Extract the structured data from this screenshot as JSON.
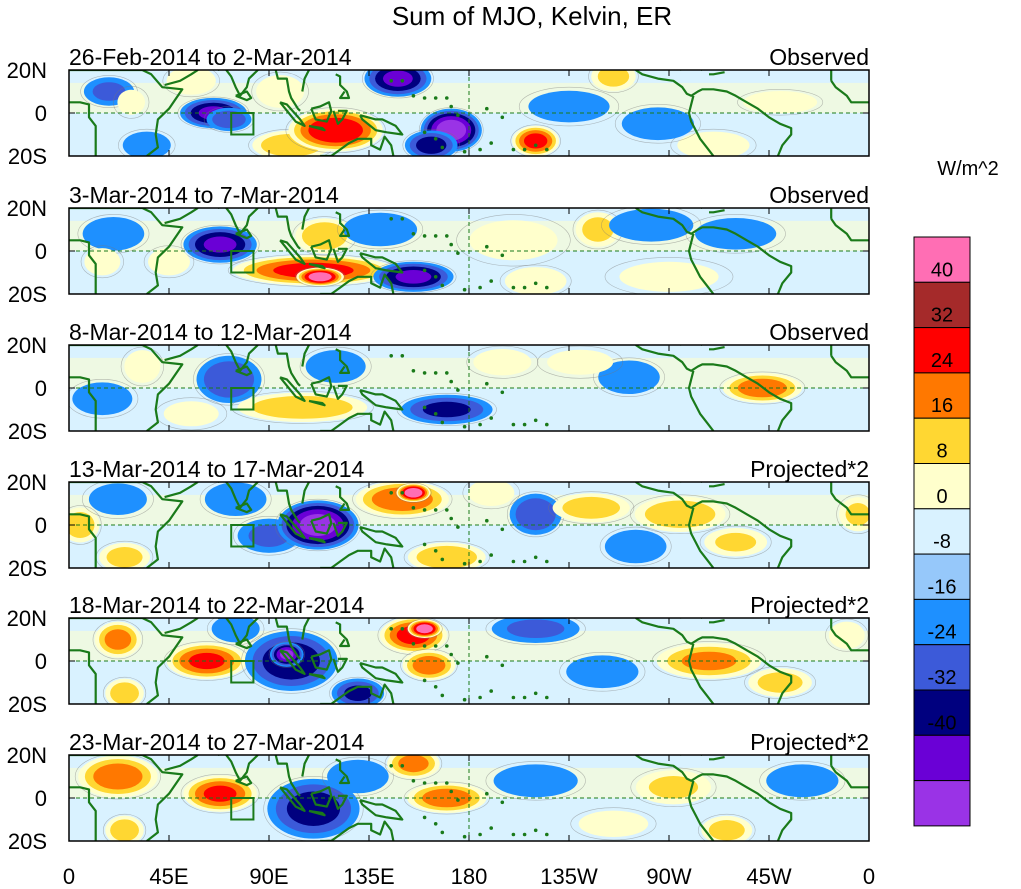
{
  "title": "Sum of MJO, Kelvin, ER",
  "colorbar": {
    "units": "W/m^2",
    "colors": [
      "#9a33e6",
      "#6a00d6",
      "#00007f",
      "#3c5ad9",
      "#1e90ff",
      "#96c8fa",
      "#d9f2ff",
      "#ffffcc",
      "#ffd732",
      "#ff7800",
      "#ff0000",
      "#a52a2a",
      "#ff6eb4"
    ],
    "labels": [
      "-40",
      "-32",
      "-24",
      "-16",
      "-8",
      "0",
      "8",
      "16",
      "24",
      "32",
      "40"
    ]
  },
  "lat_labels": [
    "20N",
    "0",
    "20S"
  ],
  "lon_labels": [
    "0",
    "45E",
    "90E",
    "135E",
    "180",
    "135W",
    "90W",
    "45W",
    "0"
  ],
  "panels": [
    {
      "date_range": "26-Feb-2014 to 2-Mar-2014",
      "kind": "Observed"
    },
    {
      "date_range": "3-Mar-2014 to 7-Mar-2014",
      "kind": "Observed"
    },
    {
      "date_range": "8-Mar-2014 to 12-Mar-2014",
      "kind": "Observed"
    },
    {
      "date_range": "13-Mar-2014 to 17-Mar-2014",
      "kind": "Projected*2"
    },
    {
      "date_range": "18-Mar-2014 to 22-Mar-2014",
      "kind": "Projected*2"
    },
    {
      "date_range": "23-Mar-2014 to 27-Mar-2014",
      "kind": "Projected*2"
    }
  ],
  "anomalies": [
    [
      {
        "lon": 18,
        "lat": 10,
        "v": -14,
        "sx": 8,
        "sy": 5
      },
      {
        "lon": 35,
        "lat": -15,
        "v": -10,
        "sx": 8,
        "sy": 5
      },
      {
        "lon": 28,
        "lat": 5,
        "v": 6,
        "sx": 5,
        "sy": 5
      },
      {
        "lon": 65,
        "lat": 0,
        "v": -30,
        "sx": 10,
        "sy": 5
      },
      {
        "lon": 72,
        "lat": -3,
        "v": -18,
        "sx": 7,
        "sy": 4
      },
      {
        "lon": 55,
        "lat": 15,
        "v": 12,
        "sx": 8,
        "sy": 5
      },
      {
        "lon": 100,
        "lat": -15,
        "v": 20,
        "sx": 12,
        "sy": 5
      },
      {
        "lon": 120,
        "lat": -8,
        "v": 36,
        "sx": 14,
        "sy": 7
      },
      {
        "lon": 148,
        "lat": 16,
        "v": -30,
        "sx": 10,
        "sy": 6
      },
      {
        "lon": 172,
        "lat": -8,
        "v": -42,
        "sx": 9,
        "sy": 7
      },
      {
        "lon": 163,
        "lat": -15,
        "v": -24,
        "sx": 8,
        "sy": 5
      },
      {
        "lon": 210,
        "lat": -13,
        "v": 32,
        "sx": 7,
        "sy": 5
      },
      {
        "lon": 245,
        "lat": 17,
        "v": 16,
        "sx": 7,
        "sy": 5
      },
      {
        "lon": 320,
        "lat": 5,
        "v": 12,
        "sx": 12,
        "sy": 4
      },
      {
        "lon": 290,
        "lat": -15,
        "v": 10,
        "sx": 12,
        "sy": 5
      },
      {
        "lon": 265,
        "lat": -5,
        "v": -10,
        "sx": 12,
        "sy": 6
      },
      {
        "lon": 225,
        "lat": 3,
        "v": -8,
        "sx": 14,
        "sy": 6
      },
      {
        "lon": 95,
        "lat": 10,
        "v": 10,
        "sx": 8,
        "sy": 6
      }
    ],
    [
      {
        "lon": 20,
        "lat": 8,
        "v": -12,
        "sx": 10,
        "sy": 6
      },
      {
        "lon": 15,
        "lat": -5,
        "v": 10,
        "sx": 6,
        "sy": 5
      },
      {
        "lon": 68,
        "lat": 3,
        "v": -30,
        "sx": 11,
        "sy": 6
      },
      {
        "lon": 45,
        "lat": -5,
        "v": 10,
        "sx": 7,
        "sy": 5
      },
      {
        "lon": 110,
        "lat": -9,
        "v": 32,
        "sx": 24,
        "sy": 5
      },
      {
        "lon": 113,
        "lat": -12,
        "v": 42,
        "sx": 7,
        "sy": 3
      },
      {
        "lon": 115,
        "lat": 7,
        "v": 20,
        "sx": 9,
        "sy": 6
      },
      {
        "lon": 140,
        "lat": 10,
        "v": -12,
        "sx": 12,
        "sy": 6
      },
      {
        "lon": 155,
        "lat": -12,
        "v": -30,
        "sx": 12,
        "sy": 5
      },
      {
        "lon": 210,
        "lat": -14,
        "v": 12,
        "sx": 10,
        "sy": 5
      },
      {
        "lon": 238,
        "lat": 10,
        "v": 16,
        "sx": 7,
        "sy": 6
      },
      {
        "lon": 262,
        "lat": 12,
        "v": -10,
        "sx": 14,
        "sy": 6
      },
      {
        "lon": 300,
        "lat": 8,
        "v": -8,
        "sx": 14,
        "sy": 6
      },
      {
        "lon": 200,
        "lat": 5,
        "v": 6,
        "sx": 16,
        "sy": 8
      },
      {
        "lon": 270,
        "lat": -12,
        "v": 6,
        "sx": 18,
        "sy": 6
      }
    ],
    [
      {
        "lon": 15,
        "lat": -5,
        "v": -10,
        "sx": 10,
        "sy": 6
      },
      {
        "lon": 33,
        "lat": 10,
        "v": 10,
        "sx": 6,
        "sy": 6
      },
      {
        "lon": 72,
        "lat": 4,
        "v": -20,
        "sx": 10,
        "sy": 8
      },
      {
        "lon": 105,
        "lat": -9,
        "v": 20,
        "sx": 20,
        "sy": 5
      },
      {
        "lon": 120,
        "lat": 10,
        "v": -10,
        "sx": 10,
        "sy": 6
      },
      {
        "lon": 170,
        "lat": -10,
        "v": -22,
        "sx": 14,
        "sy": 5
      },
      {
        "lon": 195,
        "lat": 12,
        "v": 8,
        "sx": 10,
        "sy": 5
      },
      {
        "lon": 252,
        "lat": 5,
        "v": -12,
        "sx": 10,
        "sy": 6
      },
      {
        "lon": 312,
        "lat": 0,
        "v": 26,
        "sx": 12,
        "sy": 5
      },
      {
        "lon": 230,
        "lat": 12,
        "v": 6,
        "sx": 12,
        "sy": 5
      },
      {
        "lon": 55,
        "lat": -12,
        "v": 6,
        "sx": 10,
        "sy": 5
      }
    ],
    [
      {
        "lon": 5,
        "lat": 0,
        "v": 18,
        "sx": 6,
        "sy": 6
      },
      {
        "lon": 25,
        "lat": -15,
        "v": 16,
        "sx": 8,
        "sy": 5
      },
      {
        "lon": 22,
        "lat": 12,
        "v": -8,
        "sx": 10,
        "sy": 6
      },
      {
        "lon": 75,
        "lat": 12,
        "v": -12,
        "sx": 10,
        "sy": 6
      },
      {
        "lon": 90,
        "lat": -5,
        "v": -14,
        "sx": 10,
        "sy": 6
      },
      {
        "lon": 112,
        "lat": 0,
        "v": -40,
        "sx": 12,
        "sy": 8
      },
      {
        "lon": 150,
        "lat": 12,
        "v": 28,
        "sx": 14,
        "sy": 6
      },
      {
        "lon": 155,
        "lat": 15,
        "v": 44,
        "sx": 5,
        "sy": 3
      },
      {
        "lon": 170,
        "lat": -15,
        "v": 20,
        "sx": 12,
        "sy": 5
      },
      {
        "lon": 210,
        "lat": 5,
        "v": -20,
        "sx": 8,
        "sy": 7
      },
      {
        "lon": 235,
        "lat": 8,
        "v": 18,
        "sx": 12,
        "sy": 5
      },
      {
        "lon": 275,
        "lat": 5,
        "v": 20,
        "sx": 14,
        "sy": 6
      },
      {
        "lon": 255,
        "lat": -10,
        "v": -12,
        "sx": 10,
        "sy": 6
      },
      {
        "lon": 355,
        "lat": 5,
        "v": 14,
        "sx": 6,
        "sy": 6
      },
      {
        "lon": 300,
        "lat": -8,
        "v": 14,
        "sx": 10,
        "sy": 5
      },
      {
        "lon": 190,
        "lat": 15,
        "v": 8,
        "sx": 8,
        "sy": 5
      }
    ],
    [
      {
        "lon": 22,
        "lat": 10,
        "v": 24,
        "sx": 7,
        "sy": 6
      },
      {
        "lon": 25,
        "lat": -15,
        "v": 18,
        "sx": 6,
        "sy": 5
      },
      {
        "lon": 62,
        "lat": 0,
        "v": 30,
        "sx": 12,
        "sy": 6
      },
      {
        "lon": 100,
        "lat": 0,
        "v": -26,
        "sx": 14,
        "sy": 10
      },
      {
        "lon": 98,
        "lat": 3,
        "v": -38,
        "sx": 5,
        "sy": 4
      },
      {
        "lon": 130,
        "lat": -15,
        "v": -22,
        "sx": 8,
        "sy": 5
      },
      {
        "lon": 155,
        "lat": 12,
        "v": 32,
        "sx": 10,
        "sy": 6
      },
      {
        "lon": 160,
        "lat": 15,
        "v": 42,
        "sx": 5,
        "sy": 3
      },
      {
        "lon": 162,
        "lat": -2,
        "v": 26,
        "sx": 8,
        "sy": 5
      },
      {
        "lon": 210,
        "lat": 15,
        "v": -14,
        "sx": 14,
        "sy": 5
      },
      {
        "lon": 240,
        "lat": -5,
        "v": -10,
        "sx": 12,
        "sy": 6
      },
      {
        "lon": 288,
        "lat": 0,
        "v": 22,
        "sx": 16,
        "sy": 6
      },
      {
        "lon": 320,
        "lat": -10,
        "v": 16,
        "sx": 10,
        "sy": 5
      },
      {
        "lon": 350,
        "lat": 12,
        "v": 10,
        "sx": 6,
        "sy": 5
      },
      {
        "lon": 75,
        "lat": 15,
        "v": -10,
        "sx": 8,
        "sy": 5
      }
    ],
    [
      {
        "lon": 22,
        "lat": 10,
        "v": 26,
        "sx": 12,
        "sy": 7
      },
      {
        "lon": 25,
        "lat": -15,
        "v": 18,
        "sx": 6,
        "sy": 5
      },
      {
        "lon": 68,
        "lat": 2,
        "v": 30,
        "sx": 11,
        "sy": 6
      },
      {
        "lon": 110,
        "lat": -5,
        "v": -24,
        "sx": 14,
        "sy": 10
      },
      {
        "lon": 130,
        "lat": 10,
        "v": -12,
        "sx": 10,
        "sy": 6
      },
      {
        "lon": 155,
        "lat": 16,
        "v": 24,
        "sx": 8,
        "sy": 5
      },
      {
        "lon": 170,
        "lat": 0,
        "v": 26,
        "sx": 12,
        "sy": 5
      },
      {
        "lon": 210,
        "lat": 8,
        "v": -10,
        "sx": 14,
        "sy": 6
      },
      {
        "lon": 272,
        "lat": 5,
        "v": 14,
        "sx": 12,
        "sy": 6
      },
      {
        "lon": 296,
        "lat": -15,
        "v": 16,
        "sx": 8,
        "sy": 5
      },
      {
        "lon": 330,
        "lat": 8,
        "v": -10,
        "sx": 12,
        "sy": 6
      },
      {
        "lon": 245,
        "lat": -12,
        "v": 8,
        "sx": 12,
        "sy": 5
      }
    ]
  ]
}
